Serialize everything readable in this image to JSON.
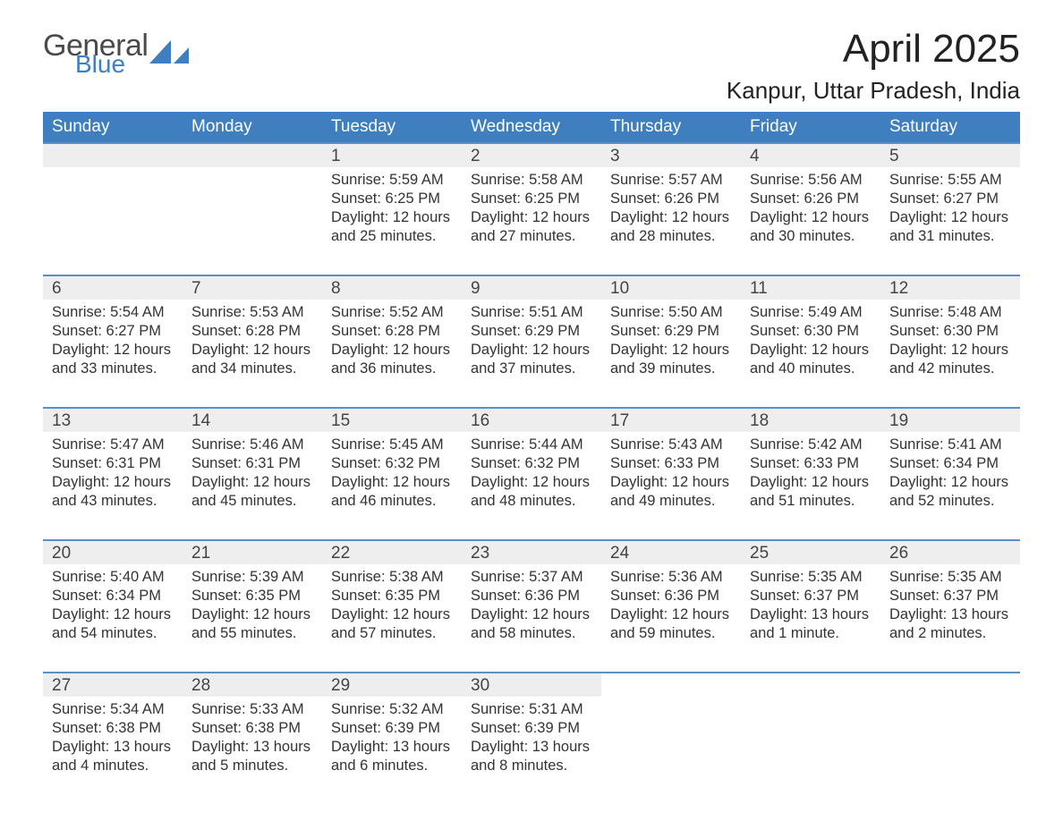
{
  "brand": {
    "word1": "General",
    "word2": "Blue",
    "word1_color": "#4a4a4a",
    "word2_color": "#3f7fbf",
    "sail_color": "#3f7fbf"
  },
  "title": "April 2025",
  "location": "Kanpur, Uttar Pradesh, India",
  "colors": {
    "header_bg": "#3f7fbf",
    "header_text": "#ffffff",
    "week_border": "#5a8fc7",
    "daynum_bg": "#eeeeee",
    "body_text": "#333333",
    "page_bg": "#ffffff"
  },
  "typography": {
    "month_fontsize": 44,
    "location_fontsize": 26,
    "dow_fontsize": 19,
    "daynum_fontsize": 19,
    "body_fontsize": 16.5
  },
  "daysOfWeek": [
    "Sunday",
    "Monday",
    "Tuesday",
    "Wednesday",
    "Thursday",
    "Friday",
    "Saturday"
  ],
  "weeks": [
    [
      {
        "blank": true
      },
      {
        "blank": true
      },
      {
        "n": "1",
        "sunrise": "Sunrise: 5:59 AM",
        "sunset": "Sunset: 6:25 PM",
        "daylight": "Daylight: 12 hours and 25 minutes."
      },
      {
        "n": "2",
        "sunrise": "Sunrise: 5:58 AM",
        "sunset": "Sunset: 6:25 PM",
        "daylight": "Daylight: 12 hours and 27 minutes."
      },
      {
        "n": "3",
        "sunrise": "Sunrise: 5:57 AM",
        "sunset": "Sunset: 6:26 PM",
        "daylight": "Daylight: 12 hours and 28 minutes."
      },
      {
        "n": "4",
        "sunrise": "Sunrise: 5:56 AM",
        "sunset": "Sunset: 6:26 PM",
        "daylight": "Daylight: 12 hours and 30 minutes."
      },
      {
        "n": "5",
        "sunrise": "Sunrise: 5:55 AM",
        "sunset": "Sunset: 6:27 PM",
        "daylight": "Daylight: 12 hours and 31 minutes."
      }
    ],
    [
      {
        "n": "6",
        "sunrise": "Sunrise: 5:54 AM",
        "sunset": "Sunset: 6:27 PM",
        "daylight": "Daylight: 12 hours and 33 minutes."
      },
      {
        "n": "7",
        "sunrise": "Sunrise: 5:53 AM",
        "sunset": "Sunset: 6:28 PM",
        "daylight": "Daylight: 12 hours and 34 minutes."
      },
      {
        "n": "8",
        "sunrise": "Sunrise: 5:52 AM",
        "sunset": "Sunset: 6:28 PM",
        "daylight": "Daylight: 12 hours and 36 minutes."
      },
      {
        "n": "9",
        "sunrise": "Sunrise: 5:51 AM",
        "sunset": "Sunset: 6:29 PM",
        "daylight": "Daylight: 12 hours and 37 minutes."
      },
      {
        "n": "10",
        "sunrise": "Sunrise: 5:50 AM",
        "sunset": "Sunset: 6:29 PM",
        "daylight": "Daylight: 12 hours and 39 minutes."
      },
      {
        "n": "11",
        "sunrise": "Sunrise: 5:49 AM",
        "sunset": "Sunset: 6:30 PM",
        "daylight": "Daylight: 12 hours and 40 minutes."
      },
      {
        "n": "12",
        "sunrise": "Sunrise: 5:48 AM",
        "sunset": "Sunset: 6:30 PM",
        "daylight": "Daylight: 12 hours and 42 minutes."
      }
    ],
    [
      {
        "n": "13",
        "sunrise": "Sunrise: 5:47 AM",
        "sunset": "Sunset: 6:31 PM",
        "daylight": "Daylight: 12 hours and 43 minutes."
      },
      {
        "n": "14",
        "sunrise": "Sunrise: 5:46 AM",
        "sunset": "Sunset: 6:31 PM",
        "daylight": "Daylight: 12 hours and 45 minutes."
      },
      {
        "n": "15",
        "sunrise": "Sunrise: 5:45 AM",
        "sunset": "Sunset: 6:32 PM",
        "daylight": "Daylight: 12 hours and 46 minutes."
      },
      {
        "n": "16",
        "sunrise": "Sunrise: 5:44 AM",
        "sunset": "Sunset: 6:32 PM",
        "daylight": "Daylight: 12 hours and 48 minutes."
      },
      {
        "n": "17",
        "sunrise": "Sunrise: 5:43 AM",
        "sunset": "Sunset: 6:33 PM",
        "daylight": "Daylight: 12 hours and 49 minutes."
      },
      {
        "n": "18",
        "sunrise": "Sunrise: 5:42 AM",
        "sunset": "Sunset: 6:33 PM",
        "daylight": "Daylight: 12 hours and 51 minutes."
      },
      {
        "n": "19",
        "sunrise": "Sunrise: 5:41 AM",
        "sunset": "Sunset: 6:34 PM",
        "daylight": "Daylight: 12 hours and 52 minutes."
      }
    ],
    [
      {
        "n": "20",
        "sunrise": "Sunrise: 5:40 AM",
        "sunset": "Sunset: 6:34 PM",
        "daylight": "Daylight: 12 hours and 54 minutes."
      },
      {
        "n": "21",
        "sunrise": "Sunrise: 5:39 AM",
        "sunset": "Sunset: 6:35 PM",
        "daylight": "Daylight: 12 hours and 55 minutes."
      },
      {
        "n": "22",
        "sunrise": "Sunrise: 5:38 AM",
        "sunset": "Sunset: 6:35 PM",
        "daylight": "Daylight: 12 hours and 57 minutes."
      },
      {
        "n": "23",
        "sunrise": "Sunrise: 5:37 AM",
        "sunset": "Sunset: 6:36 PM",
        "daylight": "Daylight: 12 hours and 58 minutes."
      },
      {
        "n": "24",
        "sunrise": "Sunrise: 5:36 AM",
        "sunset": "Sunset: 6:36 PM",
        "daylight": "Daylight: 12 hours and 59 minutes."
      },
      {
        "n": "25",
        "sunrise": "Sunrise: 5:35 AM",
        "sunset": "Sunset: 6:37 PM",
        "daylight": "Daylight: 13 hours and 1 minute."
      },
      {
        "n": "26",
        "sunrise": "Sunrise: 5:35 AM",
        "sunset": "Sunset: 6:37 PM",
        "daylight": "Daylight: 13 hours and 2 minutes."
      }
    ],
    [
      {
        "n": "27",
        "sunrise": "Sunrise: 5:34 AM",
        "sunset": "Sunset: 6:38 PM",
        "daylight": "Daylight: 13 hours and 4 minutes."
      },
      {
        "n": "28",
        "sunrise": "Sunrise: 5:33 AM",
        "sunset": "Sunset: 6:38 PM",
        "daylight": "Daylight: 13 hours and 5 minutes."
      },
      {
        "n": "29",
        "sunrise": "Sunrise: 5:32 AM",
        "sunset": "Sunset: 6:39 PM",
        "daylight": "Daylight: 13 hours and 6 minutes."
      },
      {
        "n": "30",
        "sunrise": "Sunrise: 5:31 AM",
        "sunset": "Sunset: 6:39 PM",
        "daylight": "Daylight: 13 hours and 8 minutes."
      },
      {
        "blank": true,
        "nobg": true
      },
      {
        "blank": true,
        "nobg": true
      },
      {
        "blank": true,
        "nobg": true
      }
    ]
  ]
}
